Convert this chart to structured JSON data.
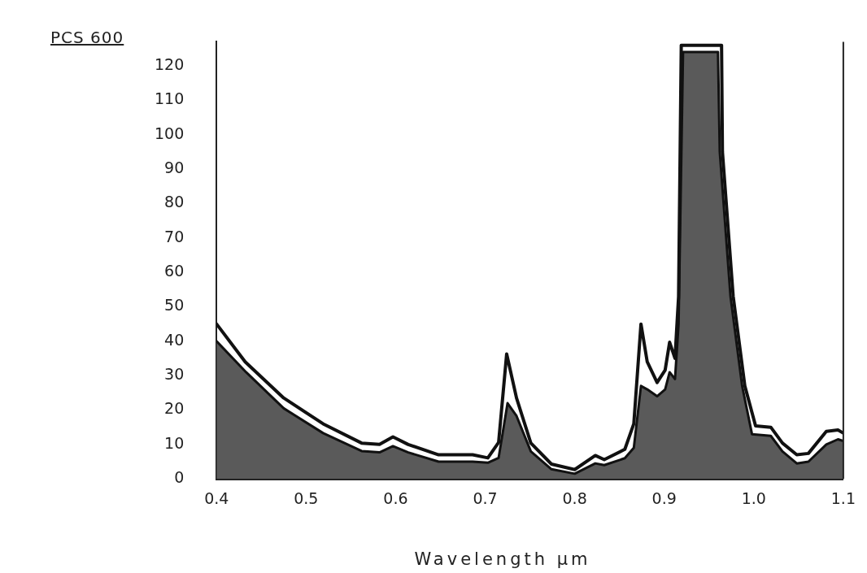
{
  "chart_data": {
    "type": "area",
    "title": "PCS 600",
    "xlabel": "Wavelength µm",
    "xlim": [
      0.4,
      1.1
    ],
    "xticks": [
      {
        "value": 0.4,
        "label": "0.4"
      },
      {
        "value": 0.5,
        "label": "0.5"
      },
      {
        "value": 0.6,
        "label": "0.6"
      },
      {
        "value": 0.7,
        "label": "0.7"
      },
      {
        "value": 0.8,
        "label": "0.8"
      },
      {
        "value": 0.9,
        "label": "0.9"
      },
      {
        "value": 1.0,
        "label": "1.0"
      },
      {
        "value": 1.1,
        "label": "1.1"
      }
    ],
    "ylim": [
      0,
      127
    ],
    "yticks": [
      0,
      10,
      20,
      30,
      40,
      50,
      60,
      70,
      80,
      90,
      100,
      110,
      120
    ],
    "grid": false,
    "legend": false,
    "marker": "none",
    "line_style": "solid",
    "series": [
      {
        "type": "area",
        "color": "#5a5a5a",
        "x": [
          0.4,
          0.433,
          0.475,
          0.519,
          0.562,
          0.582,
          0.597,
          0.614,
          0.648,
          0.686,
          0.703,
          0.715,
          0.725,
          0.735,
          0.751,
          0.774,
          0.8,
          0.823,
          0.833,
          0.856,
          0.866,
          0.874,
          0.881,
          0.892,
          0.901,
          0.906,
          0.912,
          0.916,
          0.921,
          0.96,
          0.962,
          0.974,
          0.987,
          0.998,
          1.019,
          1.032,
          1.048,
          1.061,
          1.081,
          1.094,
          1.1
        ],
        "values": [
          40,
          31,
          20.5,
          13.3,
          8.1,
          7.7,
          9.5,
          7.7,
          5,
          5,
          4.7,
          6.1,
          22,
          18.3,
          8,
          2.8,
          1.5,
          4.5,
          4,
          6,
          9,
          27,
          26,
          24,
          26,
          31,
          29,
          45,
          124,
          124,
          95,
          53,
          27,
          13,
          12.5,
          8,
          4.5,
          5,
          10,
          11.5,
          11
        ]
      },
      {
        "type": "line",
        "color": "#111111",
        "x": [
          0.4,
          0.432,
          0.475,
          0.519,
          0.562,
          0.582,
          0.597,
          0.614,
          0.648,
          0.686,
          0.703,
          0.715,
          0.724,
          0.735,
          0.751,
          0.774,
          0.8,
          0.823,
          0.833,
          0.856,
          0.866,
          0.874,
          0.881,
          0.892,
          0.901,
          0.906,
          0.912,
          0.916,
          0.919,
          0.964,
          0.965,
          0.977,
          0.99,
          1.002,
          1.019,
          1.032,
          1.048,
          1.061,
          1.081,
          1.094,
          1.1
        ],
        "values": [
          45,
          34,
          23.5,
          16,
          10.4,
          10,
          12.2,
          10,
          7,
          7,
          6.1,
          10.6,
          36.3,
          23.5,
          10.4,
          4.3,
          2.7,
          6.8,
          5.6,
          8.6,
          16,
          45,
          34,
          28,
          31.6,
          39.7,
          35,
          53,
          126,
          126,
          95,
          53,
          27,
          15.4,
          15,
          10.4,
          7,
          7.4,
          13.8,
          14.2,
          13.3
        ]
      }
    ]
  }
}
